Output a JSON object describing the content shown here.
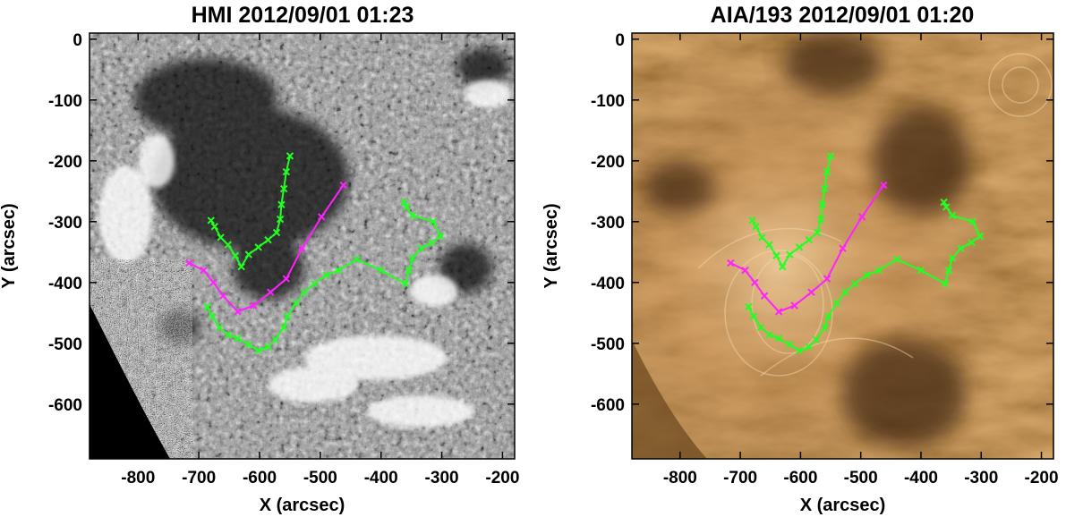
{
  "panels": [
    {
      "id": "hmi",
      "title": "HMI 2012/09/01 01:23",
      "xlabel": "X (arcsec)",
      "ylabel": "Y (arcsec)",
      "xlim": [
        -880,
        -180
      ],
      "ylim": [
        -690,
        10
      ],
      "xticks": [
        "-800",
        "-700",
        "-600",
        "-500",
        "-400",
        "-300",
        "-200"
      ],
      "xtick_values": [
        -800,
        -700,
        -600,
        -500,
        -400,
        -300,
        -200
      ],
      "yticks": [
        "0",
        "-100",
        "-200",
        "-300",
        "-400",
        "-500",
        "-600"
      ],
      "ytick_values": [
        0,
        -100,
        -200,
        -300,
        -400,
        -500,
        -600
      ],
      "image_type": "line-of-sight magnetogram (grayscale)"
    },
    {
      "id": "aia",
      "title": "AIA/193 2012/09/01 01:20",
      "xlabel": "X (arcsec)",
      "ylabel": "Y (arcsec)",
      "xlim": [
        -880,
        -180
      ],
      "ylim": [
        -690,
        10
      ],
      "xticks": [
        "-800",
        "-700",
        "-600",
        "-500",
        "-400",
        "-300",
        "-200"
      ],
      "xtick_values": [
        -800,
        -700,
        -600,
        -500,
        -400,
        -300,
        -200
      ],
      "yticks": [
        "0",
        "-100",
        "-200",
        "-300",
        "-400",
        "-500",
        "-600"
      ],
      "ytick_values": [
        0,
        -100,
        -200,
        -300,
        -400,
        -500,
        -600
      ],
      "image_type": "EUV 193 image (copper colormap)"
    }
  ],
  "colors": {
    "green": "#22ff22",
    "magenta": "#ff22ff",
    "hmi_bg": "#8a8a8a",
    "aia_bg": "#a87a46"
  },
  "traces": {
    "green_north": [
      [
        -680,
        -298
      ],
      [
        -674,
        -308
      ],
      [
        -664,
        -326
      ],
      [
        -652,
        -338
      ],
      [
        -640,
        -356
      ],
      [
        -630,
        -374
      ],
      [
        -618,
        -354
      ],
      [
        -602,
        -342
      ],
      [
        -586,
        -330
      ],
      [
        -572,
        -318
      ],
      [
        -566,
        -296
      ],
      [
        -564,
        -272
      ],
      [
        -560,
        -246
      ],
      [
        -556,
        -218
      ],
      [
        -550,
        -192
      ]
    ],
    "magenta": [
      [
        -716,
        -368
      ],
      [
        -692,
        -380
      ],
      [
        -676,
        -400
      ],
      [
        -660,
        -422
      ],
      [
        -636,
        -448
      ],
      [
        -610,
        -438
      ],
      [
        -582,
        -416
      ],
      [
        -556,
        -394
      ],
      [
        -530,
        -344
      ],
      [
        -498,
        -292
      ],
      [
        -462,
        -240
      ]
    ],
    "green_south": [
      [
        -686,
        -440
      ],
      [
        -678,
        -456
      ],
      [
        -666,
        -474
      ],
      [
        -652,
        -486
      ],
      [
        -636,
        -492
      ],
      [
        -618,
        -502
      ],
      [
        -602,
        -512
      ],
      [
        -586,
        -506
      ],
      [
        -574,
        -494
      ],
      [
        -560,
        -474
      ],
      [
        -554,
        -456
      ],
      [
        -540,
        -434
      ],
      [
        -526,
        -416
      ],
      [
        -510,
        -402
      ],
      [
        -490,
        -388
      ],
      [
        -470,
        -380
      ],
      [
        -440,
        -362
      ],
      [
        -400,
        -380
      ],
      [
        -360,
        -402
      ],
      [
        -354,
        -380
      ],
      [
        -348,
        -360
      ],
      [
        -334,
        -344
      ],
      [
        -316,
        -334
      ],
      [
        -302,
        -324
      ],
      [
        -314,
        -300
      ],
      [
        -348,
        -290
      ],
      [
        -358,
        -276
      ],
      [
        -362,
        -268
      ]
    ]
  }
}
